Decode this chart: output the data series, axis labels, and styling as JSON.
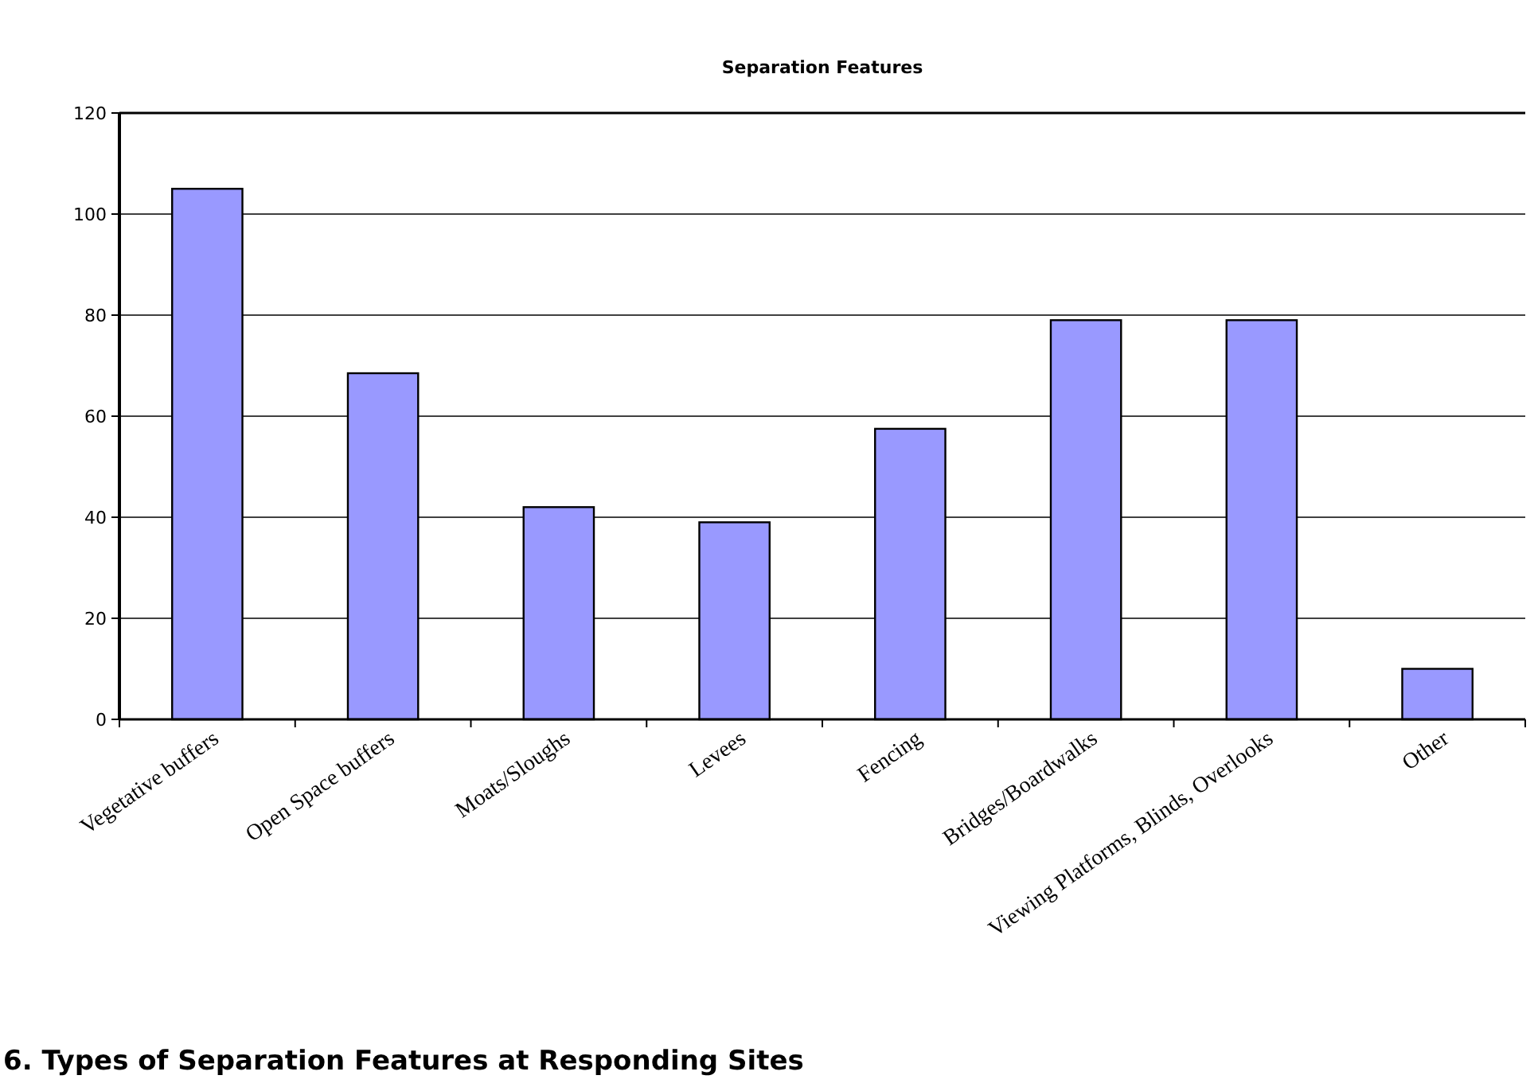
{
  "chart_data": {
    "type": "bar",
    "title": "Separation Features",
    "categories": [
      "Vegetative buffers",
      "Open Space buffers",
      "Moats/Sloughs",
      "Levees",
      "Fencing",
      "Bridges/Boardwalks",
      "Viewing Platforms, Blinds, Overlooks",
      "Other"
    ],
    "values": [
      105,
      68.5,
      42,
      39,
      57.5,
      79,
      79,
      10
    ],
    "color": "#9999ff",
    "ylim": [
      0,
      120
    ],
    "yticks": [
      0,
      20,
      40,
      60,
      80,
      100,
      120
    ],
    "grid": "y",
    "annotations": [
      "6. Types of Separation Features at Responding Sites"
    ]
  }
}
